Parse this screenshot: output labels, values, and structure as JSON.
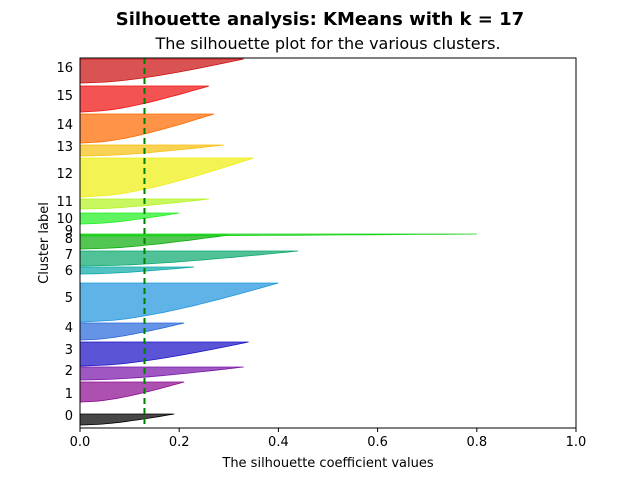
{
  "chart_data": {
    "type": "area",
    "suptitle": "Silhouette analysis: KMeans with k = 17",
    "title": "The silhouette plot for the various clusters.",
    "xlabel": "The silhouette coefficient values",
    "ylabel": "Cluster label",
    "xlim": [
      0.0,
      1.0
    ],
    "xticks": [
      "0.0",
      "0.2",
      "0.4",
      "0.6",
      "0.8",
      "1.0"
    ],
    "average_silhouette": 0.13,
    "clusters": [
      {
        "label": "0",
        "max": 0.19,
        "color": "#000000"
      },
      {
        "label": "1",
        "max": 0.21,
        "color": "#8e0e91"
      },
      {
        "label": "2",
        "max": 0.33,
        "color": "#7a18ab"
      },
      {
        "label": "3",
        "max": 0.34,
        "color": "#1c12c6"
      },
      {
        "label": "4",
        "max": 0.21,
        "color": "#2a69dd"
      },
      {
        "label": "5",
        "max": 0.4,
        "color": "#2196dd"
      },
      {
        "label": "6",
        "max": 0.23,
        "color": "#0ea9a9"
      },
      {
        "label": "7",
        "max": 0.44,
        "color": "#0ea96f"
      },
      {
        "label": "8",
        "max": 0.3,
        "color": "#0fae0f"
      },
      {
        "label": "9",
        "max": 0.8,
        "color": "#1ad41a"
      },
      {
        "label": "10",
        "max": 0.2,
        "color": "#22f022"
      },
      {
        "label": "11",
        "max": 0.26,
        "color": "#b4f422"
      },
      {
        "label": "12",
        "max": 0.35,
        "color": "#eeee12"
      },
      {
        "label": "13",
        "max": 0.29,
        "color": "#f8c010"
      },
      {
        "label": "14",
        "max": 0.27,
        "color": "#ff6a00"
      },
      {
        "label": "15",
        "max": 0.26,
        "color": "#ee1111"
      },
      {
        "label": "16",
        "max": 0.33,
        "color": "#cc1010"
      }
    ]
  }
}
